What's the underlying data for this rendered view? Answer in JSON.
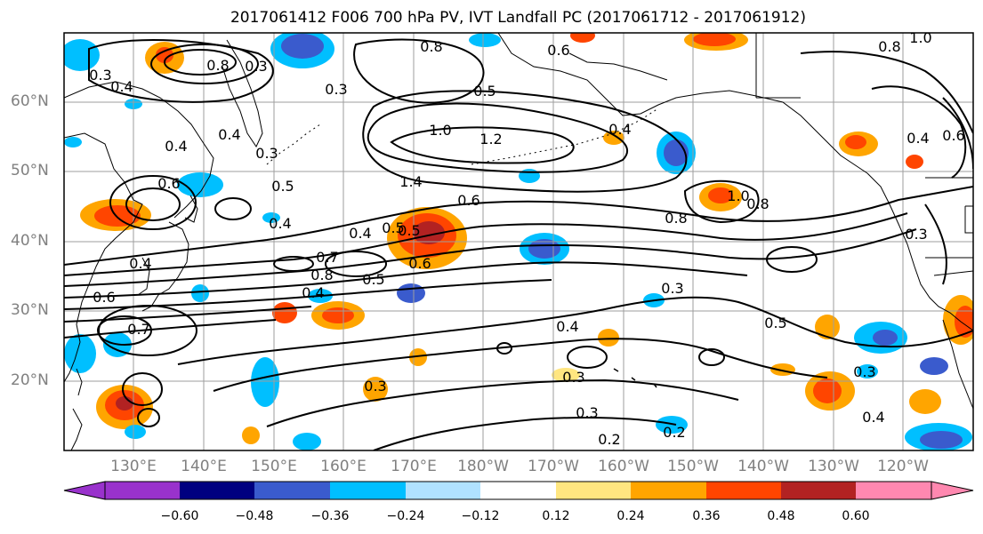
{
  "title": "2017061412 F006 700 hPa PV, IVT Landfall PC (2017061712 - 2017061912)",
  "latitude_labels": [
    "60°N",
    "50°N",
    "40°N",
    "30°N",
    "20°N"
  ],
  "longitude_labels": [
    "130°E",
    "140°E",
    "150°E",
    "160°E",
    "170°E",
    "180°W",
    "170°W",
    "160°W",
    "150°W",
    "140°W",
    "130°W",
    "120°W"
  ],
  "colorbar": {
    "tick_labels": [
      "−0.60",
      "−0.48",
      "−0.36",
      "−0.24",
      "−0.12",
      "0.12",
      "0.24",
      "0.36",
      "0.48",
      "0.60"
    ],
    "colors": [
      "#9932cc",
      "#000080",
      "#3a5bcd",
      "#00bfff",
      "#b0e2ff",
      "#ffffff",
      "#ffe680",
      "#ffa500",
      "#ff4500",
      "#b22222",
      "#ff88b0"
    ]
  },
  "contour_labels": [
    "0.6",
    "0.8",
    "1.0",
    "0.8",
    "0.3",
    "0.4",
    "0.8",
    "0.3",
    "0.5",
    "0.4",
    "1.0",
    "1.2",
    "1.4",
    "0.4",
    "0.3",
    "0.6",
    "0.5",
    "0.6",
    "0.8",
    "0.4",
    "0.4",
    "0.5",
    "0.4",
    "0.8",
    "1.0",
    "0.3",
    "0.4",
    "0.5",
    "0.7",
    "0.8",
    "0.5",
    "0.6",
    "0.4",
    "0.6",
    "0.7",
    "0.3",
    "0.4",
    "0.5",
    "0.3",
    "0.3",
    "0.3",
    "0.3",
    "0.2",
    "0.2",
    "0.4",
    "0.6",
    "0.4",
    "0.3"
  ]
}
